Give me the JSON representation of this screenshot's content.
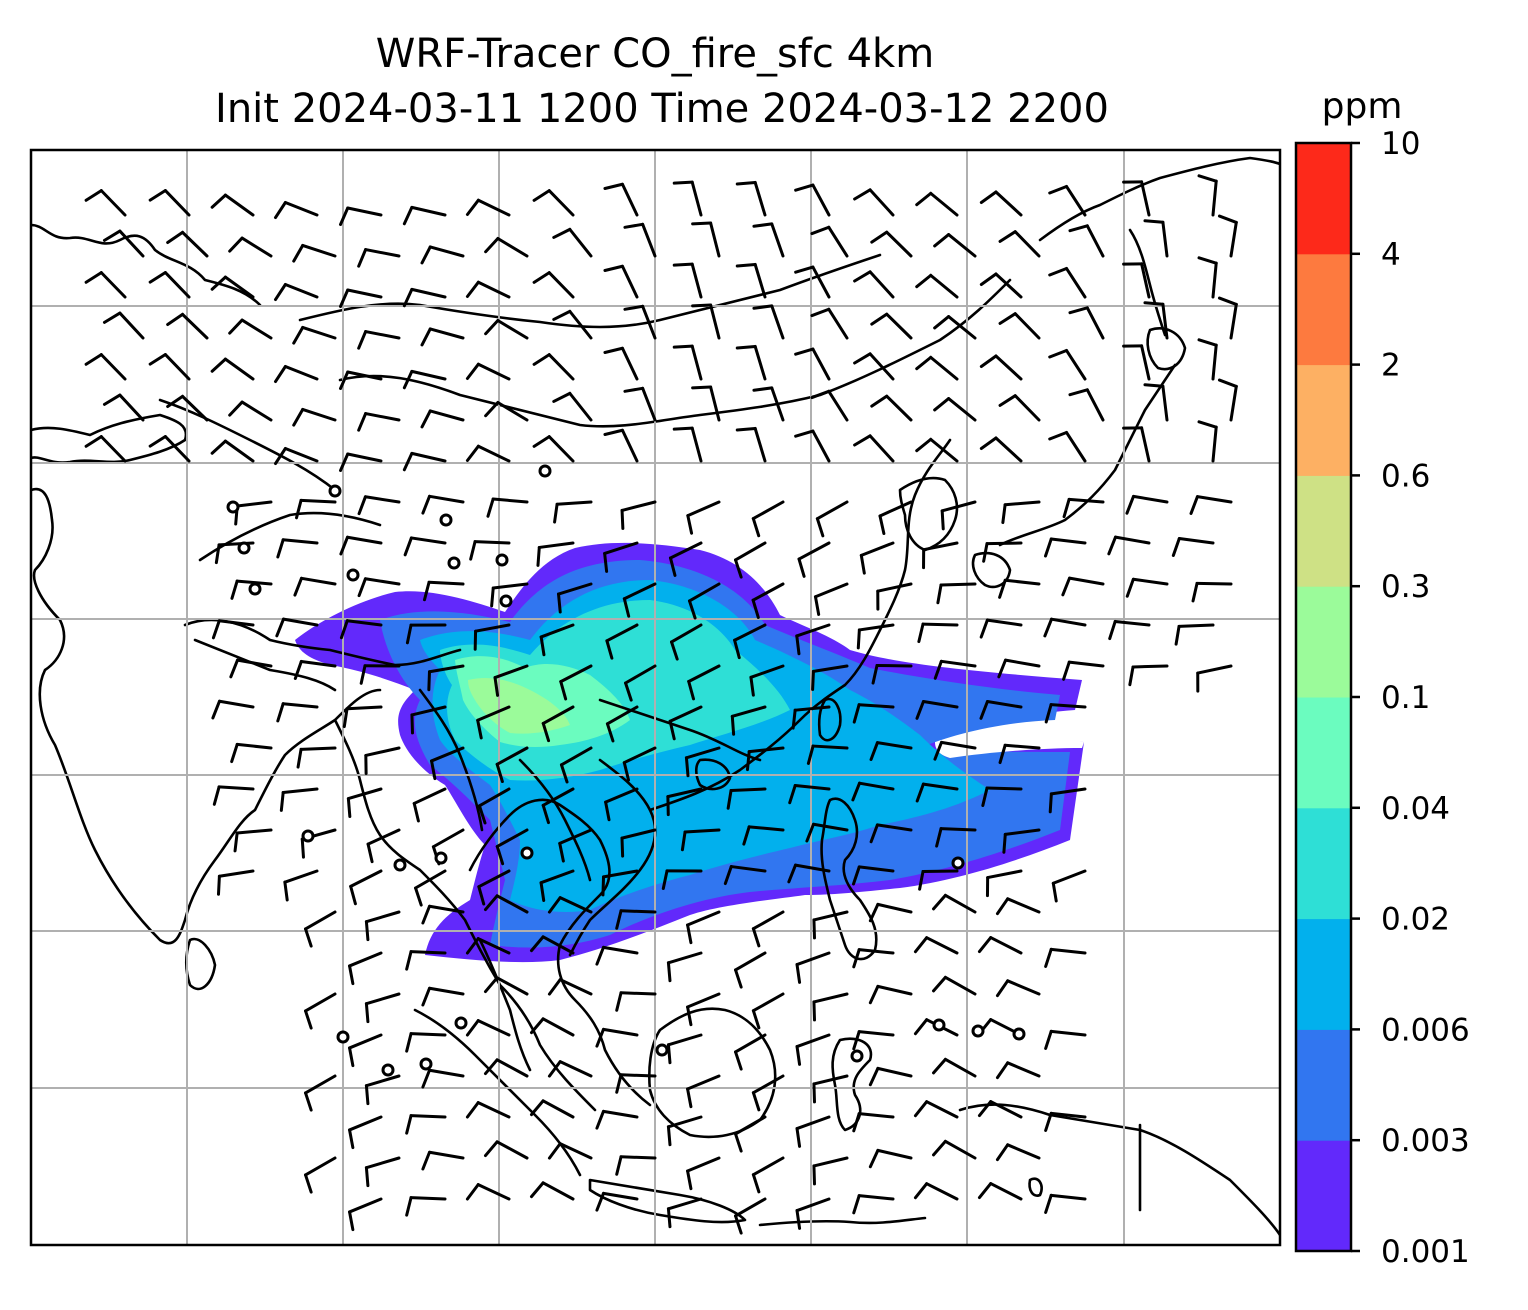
{
  "title": {
    "line1": "WRF-Tracer CO_fire_sfc 4km",
    "line2": "Init 2024-03-11 1200 Time 2024-03-12 2200"
  },
  "colorbar": {
    "unit": "ppm",
    "levels": [
      "0.001",
      "0.003",
      "0.006",
      "0.02",
      "0.04",
      "0.1",
      "0.3",
      "0.6",
      "2",
      "4",
      "10"
    ],
    "colors": [
      "#6229fb",
      "#3176f0",
      "#02b0ed",
      "#2edfd6",
      "#6bfcbf",
      "#9bfb9a",
      "#cee185",
      "#fdb063",
      "#fd7a3f",
      "#fd291a"
    ]
  },
  "map": {
    "gridlines": true,
    "features": [
      "coastlines",
      "country-borders",
      "wind-barbs",
      "co-tracer-contours"
    ]
  }
}
